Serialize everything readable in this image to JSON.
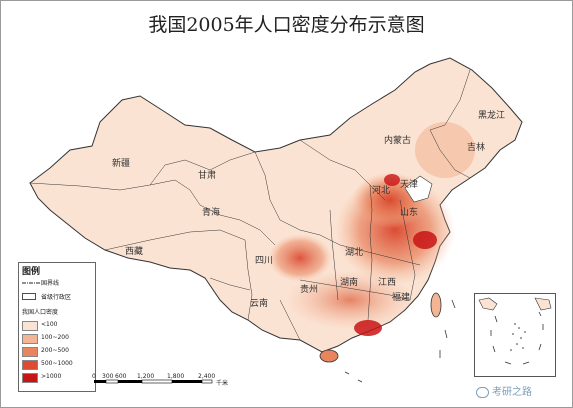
{
  "title": "我国2005年人口密度分布示意图",
  "provinces": {
    "heilongjiang": "黑龙江",
    "jilin": "吉林",
    "inner_mongolia": "内蒙古",
    "xinjiang": "新疆",
    "gansu": "甘肃",
    "qinghai": "青海",
    "tibet": "西藏",
    "sichuan": "四川",
    "yunnan": "云南",
    "hubei": "湖北",
    "hunan": "湖南",
    "guizhou": "贵州",
    "fujian": "福建",
    "jiangxi": "江西",
    "tianjin": "天津",
    "shandong": "山东",
    "hebei": "河北"
  },
  "legend": {
    "title": "图例",
    "national_border": "国界线",
    "provincial_border": "省级行政区",
    "density_title": "我国人口密度",
    "classes": [
      {
        "label": "<100",
        "color": "#fbe3d3"
      },
      {
        "label": "100~200",
        "color": "#f3b594"
      },
      {
        "label": "200~500",
        "color": "#e8855f"
      },
      {
        "label": "500~1000",
        "color": "#dc4b32"
      },
      {
        "label": ">1000",
        "color": "#c81414"
      }
    ]
  },
  "scale": {
    "ticks": [
      "0",
      "300",
      "600",
      "1,200",
      "1,800",
      "2,400"
    ],
    "unit": "千米"
  },
  "watermark": "考研之路"
}
